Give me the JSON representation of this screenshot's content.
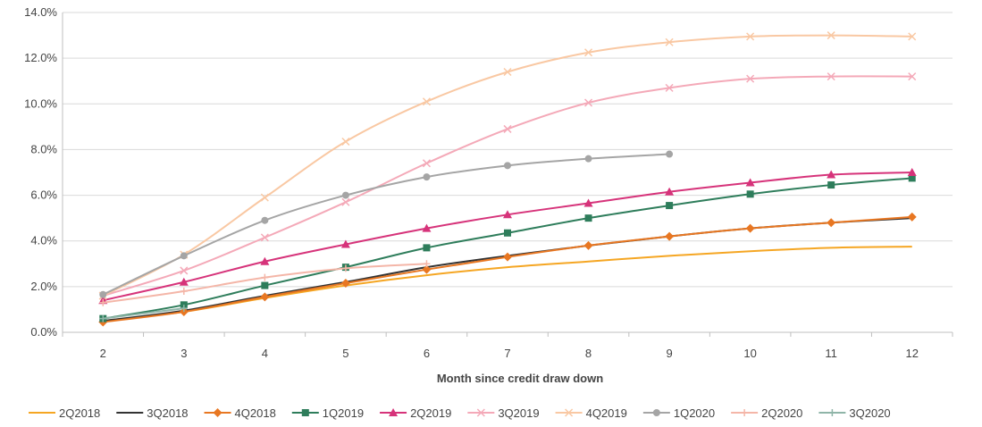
{
  "chart_data": {
    "type": "line",
    "title": "",
    "xlabel": "Month since credit draw down",
    "ylabel": "",
    "x": [
      2,
      3,
      4,
      5,
      6,
      7,
      8,
      9,
      10,
      11,
      12
    ],
    "x_tick_labels": [
      "2",
      "3",
      "4",
      "5",
      "6",
      "7",
      "8",
      "9",
      "10",
      "11",
      "12"
    ],
    "ylim": [
      0,
      14
    ],
    "y_ticks": [
      0,
      2,
      4,
      6,
      8,
      10,
      12,
      14
    ],
    "y_tick_labels": [
      "0.0%",
      "2.0%",
      "4.0%",
      "6.0%",
      "8.0%",
      "10.0%",
      "12.0%",
      "14.0%"
    ],
    "grid": "horizontal",
    "legend": "bottom",
    "series": [
      {
        "name": "2Q2018",
        "color": "#f5a623",
        "marker": "none",
        "values": [
          0.5,
          0.9,
          1.5,
          2.05,
          2.5,
          2.85,
          3.1,
          3.35,
          3.55,
          3.7,
          3.75
        ]
      },
      {
        "name": "3Q2018",
        "color": "#333333",
        "marker": "none",
        "values": [
          0.5,
          0.95,
          1.6,
          2.2,
          2.85,
          3.35,
          3.8,
          4.2,
          4.55,
          4.8,
          5.0
        ]
      },
      {
        "name": "4Q2018",
        "color": "#e87722",
        "marker": "diamond",
        "values": [
          0.45,
          0.9,
          1.55,
          2.15,
          2.75,
          3.3,
          3.8,
          4.2,
          4.55,
          4.8,
          5.05
        ]
      },
      {
        "name": "1Q2019",
        "color": "#2e7d5b",
        "marker": "square",
        "values": [
          0.6,
          1.2,
          2.05,
          2.85,
          3.7,
          4.35,
          5.0,
          5.55,
          6.05,
          6.45,
          6.75
        ]
      },
      {
        "name": "2Q2019",
        "color": "#d6337a",
        "marker": "triangle",
        "values": [
          1.4,
          2.2,
          3.1,
          3.85,
          4.55,
          5.15,
          5.65,
          6.15,
          6.55,
          6.9,
          7.0
        ]
      },
      {
        "name": "3Q2019",
        "color": "#f4a9b8",
        "marker": "x",
        "values": [
          1.6,
          2.7,
          4.15,
          5.7,
          7.4,
          8.9,
          10.05,
          10.7,
          11.1,
          11.2,
          11.2
        ]
      },
      {
        "name": "4Q2019",
        "color": "#f9c8a3",
        "marker": "x",
        "values": [
          1.6,
          3.4,
          5.9,
          8.35,
          10.1,
          11.4,
          12.25,
          12.7,
          12.95,
          13.0,
          12.95
        ]
      },
      {
        "name": "1Q2020",
        "color": "#a5a5a5",
        "marker": "circle",
        "values": [
          1.65,
          3.35,
          4.9,
          6.0,
          6.8,
          7.3,
          7.6,
          7.8,
          null,
          null,
          null
        ]
      },
      {
        "name": "2Q2020",
        "color": "#f4b6a8",
        "marker": "plus",
        "values": [
          1.3,
          1.8,
          2.4,
          2.8,
          3.0,
          null,
          null,
          null,
          null,
          null,
          null
        ]
      },
      {
        "name": "3Q2020",
        "color": "#8fb5a8",
        "marker": "plus",
        "values": [
          0.6,
          1.05,
          null,
          null,
          null,
          null,
          null,
          null,
          null,
          null,
          null
        ]
      }
    ]
  }
}
